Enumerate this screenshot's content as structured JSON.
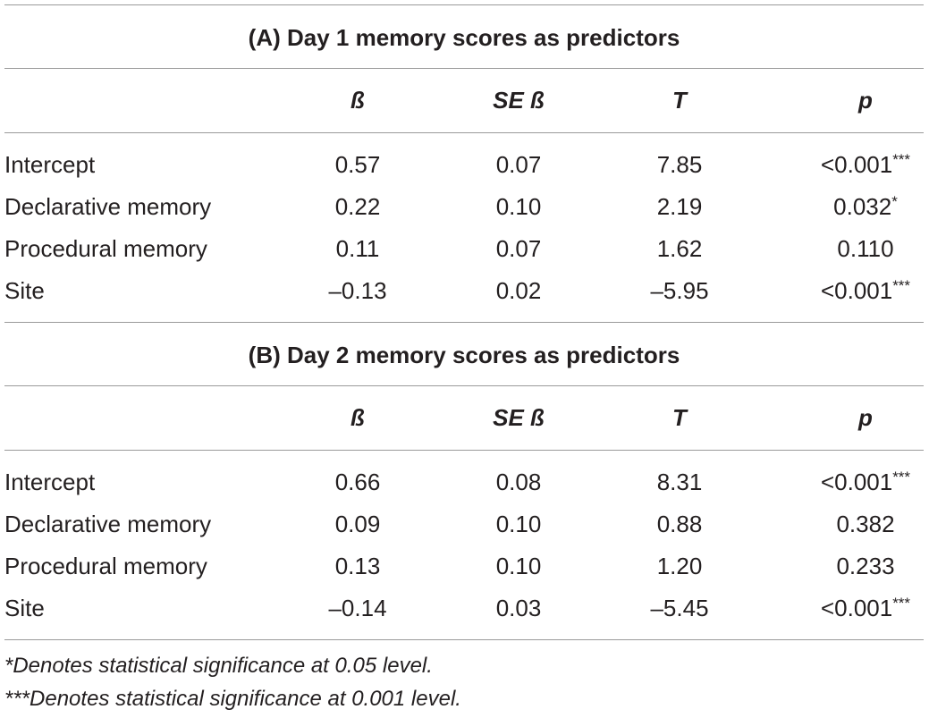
{
  "table": {
    "sections": [
      {
        "title": "(A) Day 1 memory scores as predictors",
        "columns": [
          "ß",
          "SE ß",
          "T",
          "p"
        ],
        "rows": [
          {
            "label": "Intercept",
            "cells": [
              "0.57",
              "0.07",
              "7.85",
              "<0.001"
            ],
            "sig": "***"
          },
          {
            "label": "Declarative memory",
            "cells": [
              "0.22",
              "0.10",
              "2.19",
              "0.032"
            ],
            "sig": "*"
          },
          {
            "label": "Procedural memory",
            "cells": [
              "0.11",
              "0.07",
              "1.62",
              "0.110"
            ]
          },
          {
            "label": "Site",
            "cells": [
              "–0.13",
              "0.02",
              "–5.95",
              "<0.001"
            ],
            "sig": "***"
          }
        ]
      },
      {
        "title": "(B) Day 2 memory scores as predictors",
        "columns": [
          "ß",
          "SE ß",
          "T",
          "p"
        ],
        "rows": [
          {
            "label": "Intercept",
            "cells": [
              "0.66",
              "0.08",
              "8.31",
              "<0.001"
            ],
            "sig": "***"
          },
          {
            "label": "Declarative memory",
            "cells": [
              "0.09",
              "0.10",
              "0.88",
              "0.382"
            ]
          },
          {
            "label": "Procedural memory",
            "cells": [
              "0.13",
              "0.10",
              "1.20",
              "0.233"
            ]
          },
          {
            "label": "Site",
            "cells": [
              "–0.14",
              "0.03",
              "–5.45",
              "<0.001"
            ],
            "sig": "***"
          }
        ]
      }
    ],
    "footnotes": [
      "*Denotes statistical significance at 0.05 level.",
      "***Denotes statistical significance at 0.001 level."
    ]
  }
}
